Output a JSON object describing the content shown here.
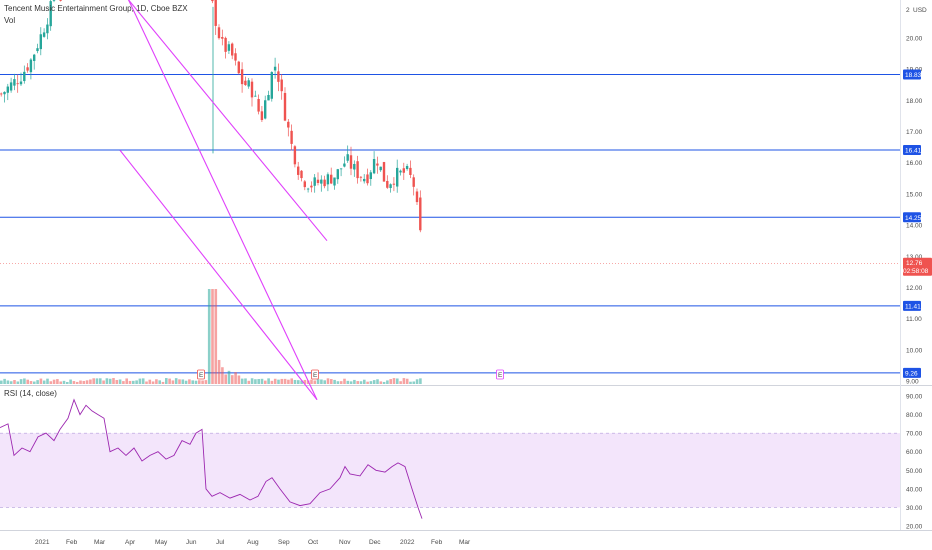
{
  "header": {
    "title": "Tencent Music Entertainment Group, 1D, Cboe BZX",
    "vol_label": "Vol",
    "currency": "USD",
    "rsi_label": "RSI (14, close)"
  },
  "colors": {
    "up": "#26a69a",
    "down": "#ef5350",
    "level_line": "#1e53e5",
    "trendline": "#e040fb",
    "rsi_line": "#9c27b0",
    "rsi_band": "#f3e5fb",
    "current_price_tag": "#ef5350"
  },
  "chart_data": [
    {
      "type": "candlestick",
      "y_axis_ticks": [
        "20.00",
        "19.00",
        "18.00",
        "17.00",
        "16.00",
        "15.00",
        "14.00",
        "13.00",
        "12.00",
        "11.00",
        "10.00",
        "9.00"
      ],
      "ylim": [
        8.5,
        21.2
      ],
      "x_axis_ticks": [
        "2021",
        "Feb",
        "Mar",
        "Apr",
        "May",
        "Jun",
        "Jul",
        "Aug",
        "Sep",
        "Oct",
        "Nov",
        "Dec",
        "2022",
        "Feb",
        "Mar"
      ],
      "top_clipped_label": "2",
      "horizontal_levels": [
        {
          "value": 18.83,
          "label": "18.83"
        },
        {
          "value": 16.41,
          "label": "16.41"
        },
        {
          "value": 14.25,
          "label": "14.25"
        },
        {
          "value": 11.41,
          "label": "11.41"
        },
        {
          "value": 9.26,
          "label": "9.26"
        }
      ],
      "current_price": {
        "value": 12.76,
        "label": "12.76",
        "countdown": "02:58:08"
      },
      "trendlines": [
        {
          "from": {
            "x": "2021-03-26",
            "y": 21.4
          },
          "to": {
            "x": "2021-10-15",
            "y": 13.5
          }
        },
        {
          "from": {
            "x": "2021-03-25",
            "y": 21.6
          },
          "to": {
            "x": "2021-10-05",
            "y": 8.4
          }
        },
        {
          "from": {
            "x": "2021-03-22",
            "y": 16.4
          },
          "to": {
            "x": "2021-10-05",
            "y": 8.4
          }
        }
      ],
      "event_markers": [
        "E",
        "E",
        "E"
      ]
    },
    {
      "type": "line",
      "title": "RSI (14, close)",
      "y_axis_ticks": [
        "90.00",
        "80.00",
        "70.00",
        "60.00",
        "50.00",
        "40.00",
        "30.00",
        "20.00"
      ],
      "ylim": [
        15,
        96
      ],
      "band": [
        30,
        70
      ]
    }
  ]
}
